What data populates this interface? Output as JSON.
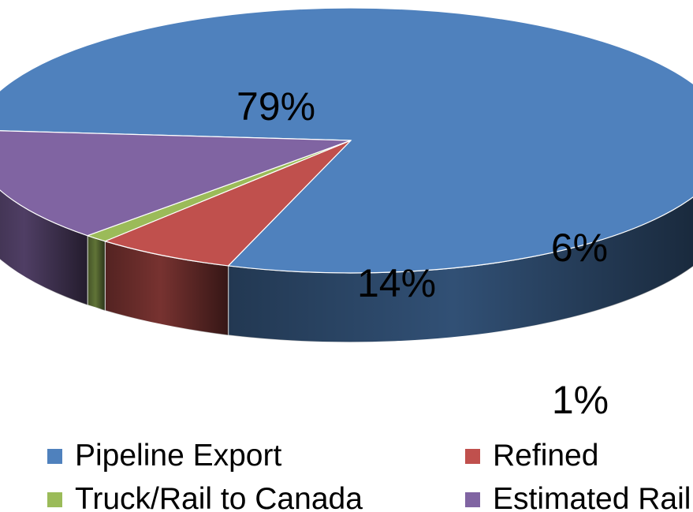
{
  "chart_data": {
    "type": "pie",
    "style": "3d",
    "title": "",
    "categories": [
      "Pipeline Export",
      "Refined",
      "Truck/Rail to Canada",
      "Estimated Rail"
    ],
    "values": [
      79,
      6,
      1,
      14
    ],
    "data_labels": [
      "79%",
      "6%",
      "1%",
      "14%"
    ],
    "colors": [
      "#4F81BD",
      "#C0504D",
      "#9BBB59",
      "#8064A2"
    ],
    "legend_position": "bottom"
  }
}
